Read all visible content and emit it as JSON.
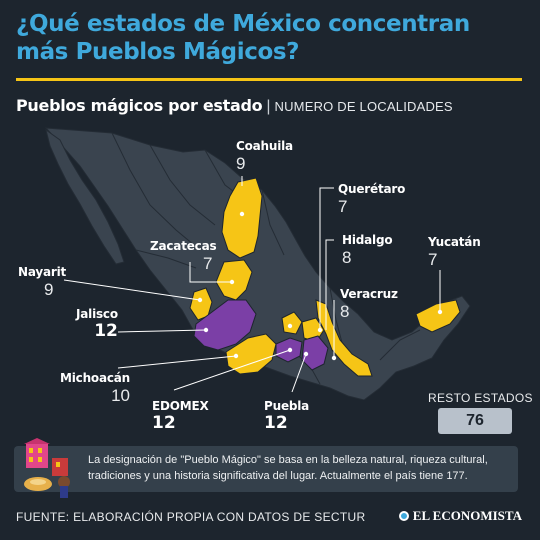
{
  "title": "¿Qué estados de México concentran más Pueblos Mágicos?",
  "subtitle": {
    "main": "Pueblos mágicos por estado",
    "separator": "|",
    "unit": "NUMERO DE LOCALIDADES"
  },
  "colors": {
    "background": "#1d252e",
    "title": "#3fa9dc",
    "accent_yellow": "#f6c516",
    "accent_purple": "#7b3fa6",
    "land_other": "#3a444f"
  },
  "states": [
    {
      "name": "Coahuila",
      "value": "9",
      "bold": false,
      "color": "yellow"
    },
    {
      "name": "Querétaro",
      "value": "7",
      "bold": false,
      "color": "yellow"
    },
    {
      "name": "Zacatecas",
      "value": "7",
      "bold": false,
      "color": "yellow"
    },
    {
      "name": "Hidalgo",
      "value": "8",
      "bold": false,
      "color": "yellow"
    },
    {
      "name": "Yucatán",
      "value": "7",
      "bold": false,
      "color": "yellow"
    },
    {
      "name": "Nayarit",
      "value": "9",
      "bold": false,
      "color": "yellow"
    },
    {
      "name": "Veracruz",
      "value": "8",
      "bold": false,
      "color": "yellow"
    },
    {
      "name": "Jalisco",
      "value": "12",
      "bold": true,
      "color": "purple"
    },
    {
      "name": "Michoacán",
      "value": "10",
      "bold": false,
      "color": "yellow"
    },
    {
      "name": "EDOMEX",
      "value": "12",
      "bold": true,
      "color": "purple"
    },
    {
      "name": "Puebla",
      "value": "12",
      "bold": true,
      "color": "purple"
    }
  ],
  "rest": {
    "label": "RESTO ESTADOS",
    "value": "76"
  },
  "note": "La designación de \"Pueblo Mágico\" se basa en la belleza natural, riqueza cultural, tradiciones y una historia significativa del lugar. Actualmente el país tiene 177.",
  "footer": "FUENTE: ELABORACIÓN PROPIA CON DATOS DE SECTUR",
  "brand": "EL ECONOMISTA"
}
